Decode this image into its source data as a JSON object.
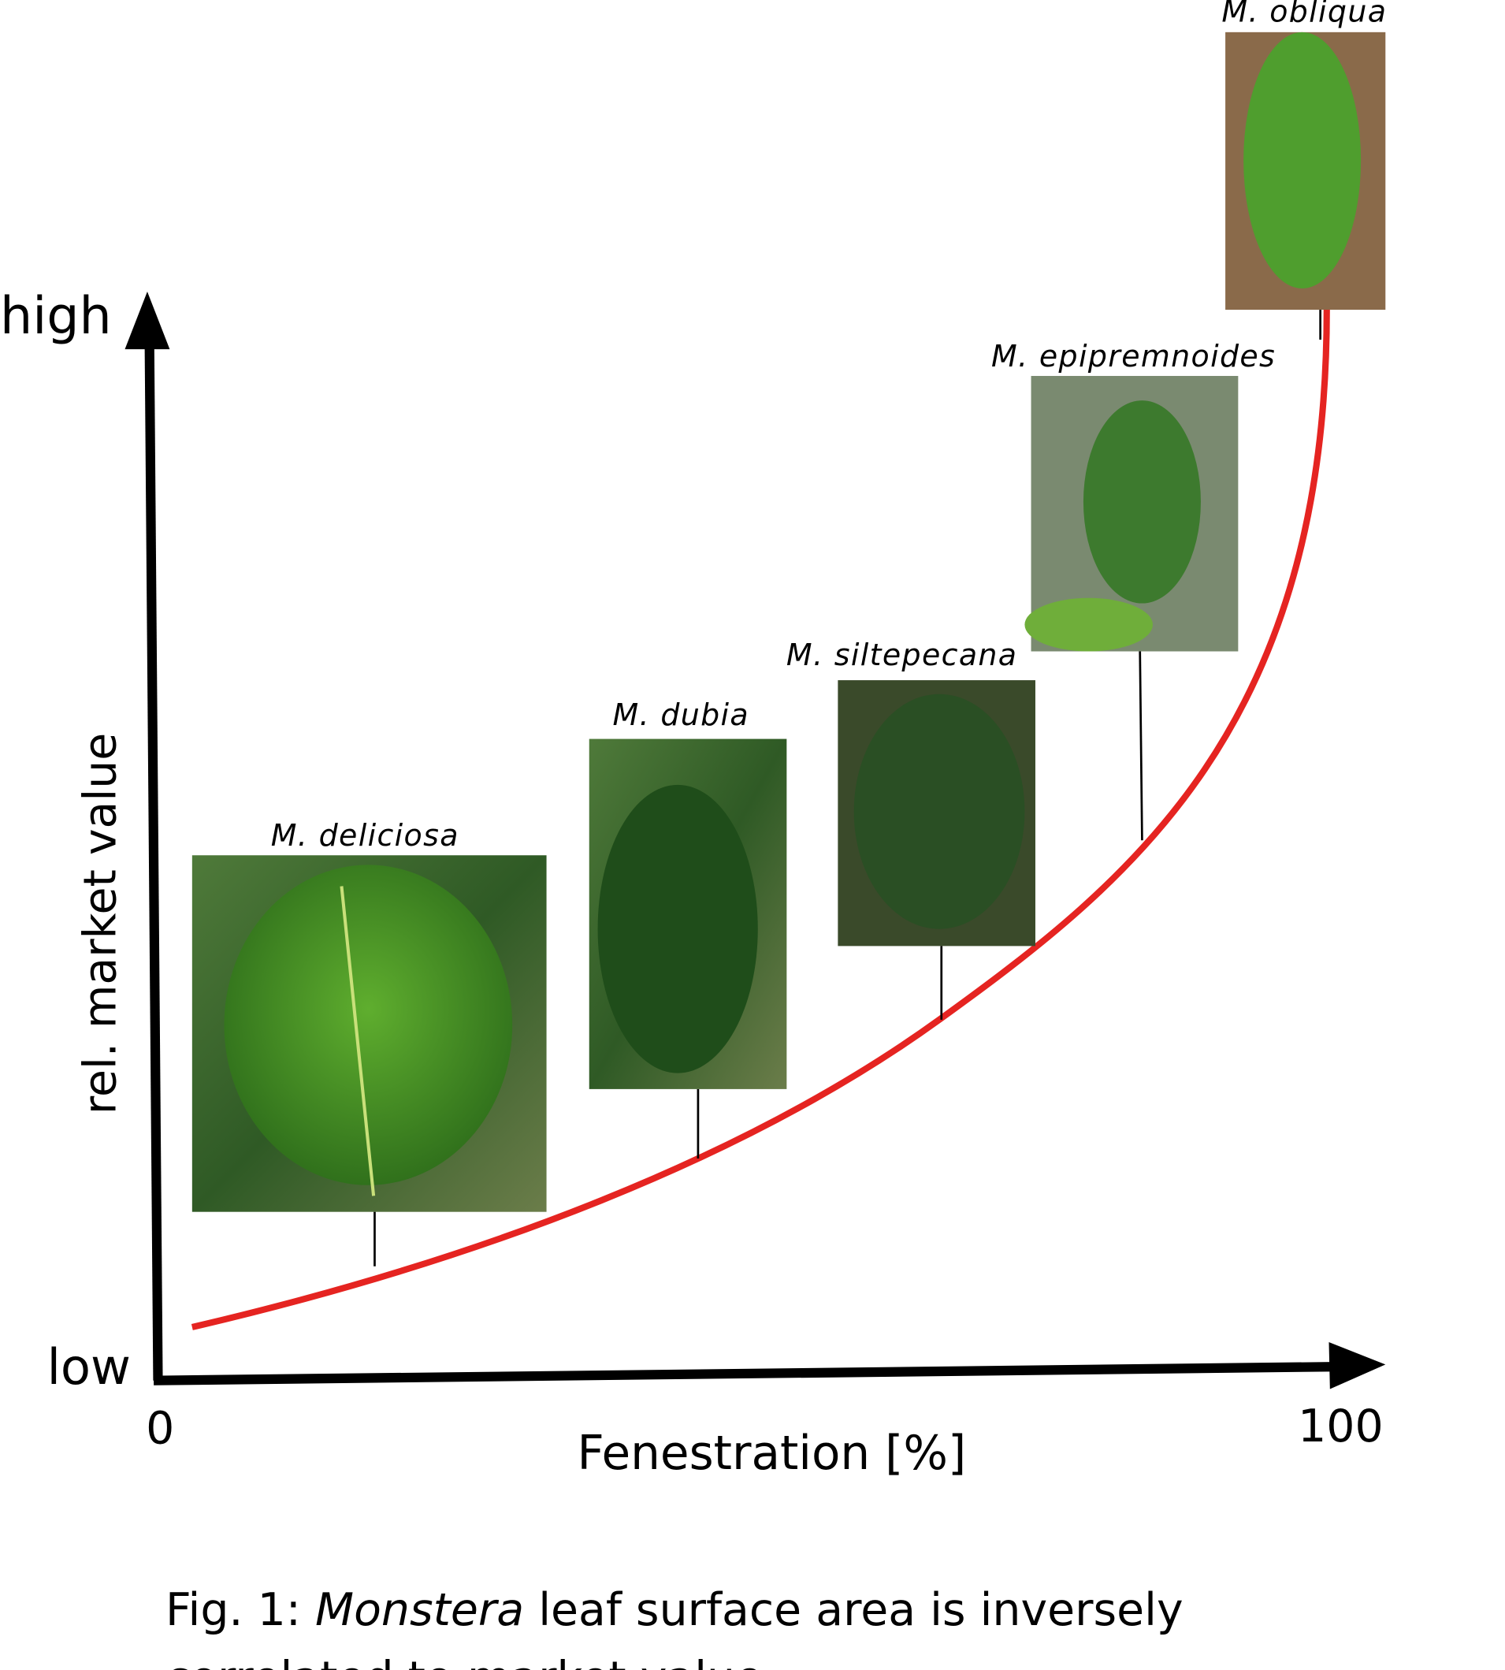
{
  "axes": {
    "y_high": "high",
    "y_low": "low",
    "y_title": "rel. market value",
    "x_title": "Fenestration [%]",
    "x_ticks": [
      0,
      100
    ]
  },
  "species": [
    {
      "label": "M. deliciosa"
    },
    {
      "label": "M. dubia"
    },
    {
      "label": "M. siltepecana"
    },
    {
      "label": "M. epipremnoides"
    },
    {
      "label": "M. obliqua"
    }
  ],
  "caption": {
    "prefix": "Fig. 1: ",
    "italic": "Monstera",
    "line1_rest": " leaf surface area is inversely",
    "line2": "correlated to market value"
  }
}
